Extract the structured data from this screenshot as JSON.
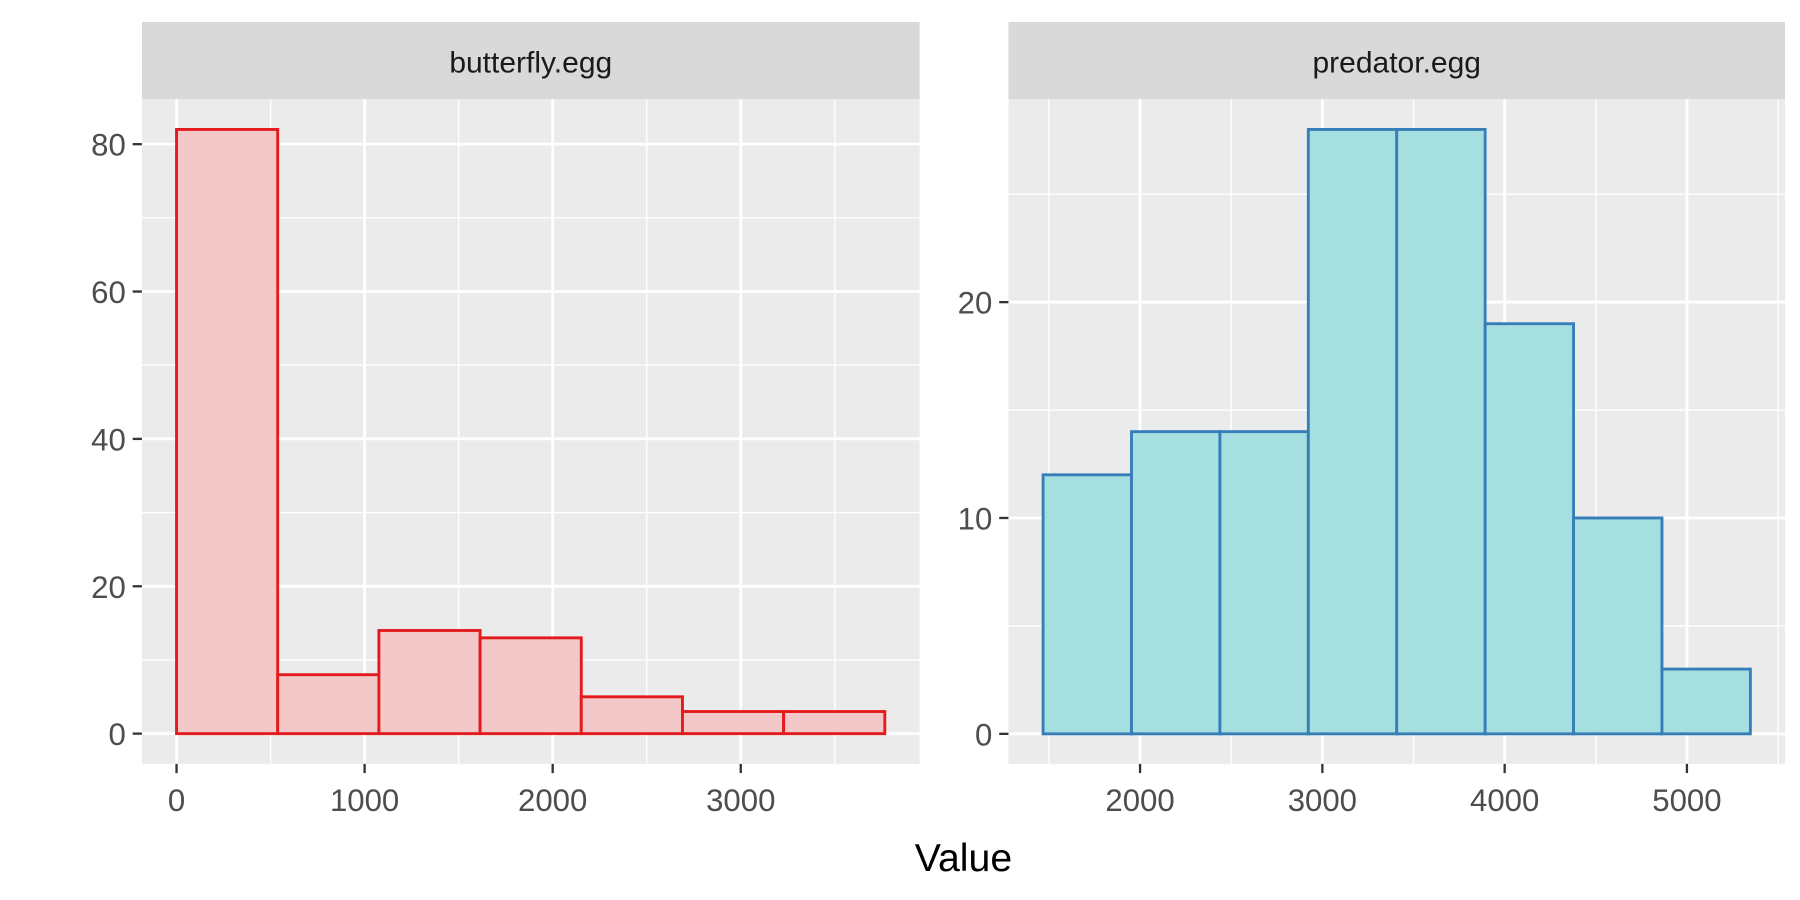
{
  "xlabel": "Value",
  "chart_data": [
    {
      "type": "histogram",
      "title": "butterfly.egg",
      "bins": [
        0,
        538,
        1076,
        1614,
        2152,
        2690,
        3228,
        3766
      ],
      "values": [
        82,
        8,
        14,
        13,
        5,
        3,
        3
      ],
      "color": "#f2c8c8",
      "edgecolor": "#e41a1c",
      "xlim": [
        -184,
        3951
      ],
      "xticks": [
        0,
        1000,
        2000,
        3000
      ],
      "x_minor_grid": [
        500,
        1500,
        2500,
        3500
      ],
      "ylim": [
        -4.1,
        86.1
      ],
      "yticks": [
        0,
        20,
        40,
        60,
        80
      ],
      "y_minor_grid": [
        10,
        30,
        50,
        70
      ],
      "grid": true
    },
    {
      "type": "histogram",
      "title": "predator.egg",
      "bins": [
        1468,
        1953,
        2438,
        2923,
        3408,
        3893,
        4378,
        4863,
        5348
      ],
      "values": [
        12,
        14,
        14,
        28,
        28,
        19,
        10,
        3
      ],
      "color": "#a6dfe0",
      "edgecolor": "#377eb8",
      "xlim": [
        1278,
        5538
      ],
      "xticks": [
        2000,
        3000,
        4000,
        5000
      ],
      "x_minor_grid": [
        1500,
        2500,
        3500,
        4500,
        5500
      ],
      "ylim": [
        -1.39,
        29.4
      ],
      "yticks": [
        0,
        10,
        20
      ],
      "y_minor_grid": [
        5,
        15,
        25
      ],
      "grid": true
    }
  ]
}
